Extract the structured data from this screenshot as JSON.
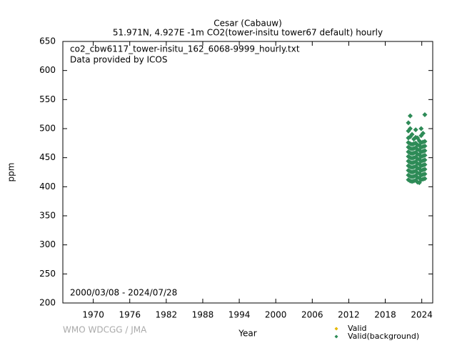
{
  "chart_data": {
    "type": "scatter",
    "title": "Cesar (Cabauw)",
    "subtitle": "51.971N, 4.927E -1m     CO2(tower-insitu tower67 default) hourly",
    "annotations": [
      "co2_cbw6117_tower-insitu_162_6068-9999_hourly.txt",
      "Data provided by ICOS",
      "2000/03/08 - 2024/07/28"
    ],
    "xlabel": "Year",
    "ylabel": "ppm",
    "credit": "WMO WDCGG / JMA",
    "xlim": [
      1965,
      2025.8
    ],
    "ylim": [
      200,
      650
    ],
    "xticks": [
      1970,
      1976,
      1982,
      1988,
      1994,
      2000,
      2006,
      2012,
      2018,
      2024
    ],
    "yticks": [
      200,
      250,
      300,
      350,
      400,
      450,
      500,
      550,
      600,
      650
    ],
    "series": [
      {
        "name": "Valid",
        "color": "#e6b800",
        "x": [],
        "values": []
      },
      {
        "name": "Valid(background)",
        "color": "#2e8b57",
        "x": [
          2021.8,
          2021.8,
          2021.8,
          2021.8,
          2021.8,
          2021.8,
          2021.8,
          2021.8,
          2021.8,
          2021.8,
          2021.8,
          2021.8,
          2022.1,
          2022.1,
          2022.1,
          2022.1,
          2022.1,
          2022.1,
          2022.1,
          2022.1,
          2022.1,
          2022.1,
          2022.1,
          2022.1,
          2022.4,
          2022.4,
          2022.4,
          2022.4,
          2022.4,
          2022.4,
          2022.4,
          2022.4,
          2022.4,
          2022.4,
          2022.7,
          2022.7,
          2022.7,
          2022.7,
          2022.7,
          2022.7,
          2022.7,
          2022.7,
          2022.7,
          2022.7,
          2023.0,
          2023.0,
          2023.0,
          2023.0,
          2023.0,
          2023.0,
          2023.0,
          2023.0,
          2023.0,
          2023.0,
          2023.0,
          2023.3,
          2023.3,
          2023.3,
          2023.3,
          2023.3,
          2023.3,
          2023.3,
          2023.3,
          2023.3,
          2023.3,
          2023.6,
          2023.6,
          2023.6,
          2023.6,
          2023.6,
          2023.6,
          2023.6,
          2023.6,
          2023.6,
          2023.6,
          2023.9,
          2023.9,
          2023.9,
          2023.9,
          2023.9,
          2023.9,
          2023.9,
          2023.9,
          2023.9,
          2023.9,
          2023.9,
          2024.2,
          2024.2,
          2024.2,
          2024.2,
          2024.2,
          2024.2,
          2024.2,
          2024.2,
          2024.2,
          2024.2,
          2024.5,
          2024.5,
          2024.5,
          2024.5,
          2024.5,
          2024.5,
          2024.5,
          2024.5,
          2024.5,
          2024.5
        ],
        "values": [
          412,
          420,
          428,
          436,
          444,
          452,
          460,
          468,
          476,
          484,
          496,
          510,
          410,
          418,
          426,
          434,
          442,
          450,
          458,
          466,
          474,
          486,
          500,
          522,
          409,
          417,
          425,
          433,
          441,
          449,
          457,
          465,
          473,
          490,
          410,
          418,
          426,
          434,
          442,
          450,
          458,
          466,
          474,
          482,
          411,
          419,
          427,
          435,
          443,
          451,
          459,
          467,
          475,
          485,
          498,
          408,
          416,
          424,
          432,
          440,
          448,
          456,
          464,
          472,
          484,
          407,
          415,
          423,
          431,
          439,
          447,
          455,
          463,
          471,
          479,
          412,
          420,
          428,
          436,
          444,
          452,
          460,
          468,
          476,
          488,
          500,
          413,
          421,
          429,
          437,
          445,
          453,
          461,
          469,
          477,
          492,
          414,
          422,
          430,
          438,
          446,
          454,
          462,
          470,
          478,
          524
        ]
      }
    ]
  }
}
